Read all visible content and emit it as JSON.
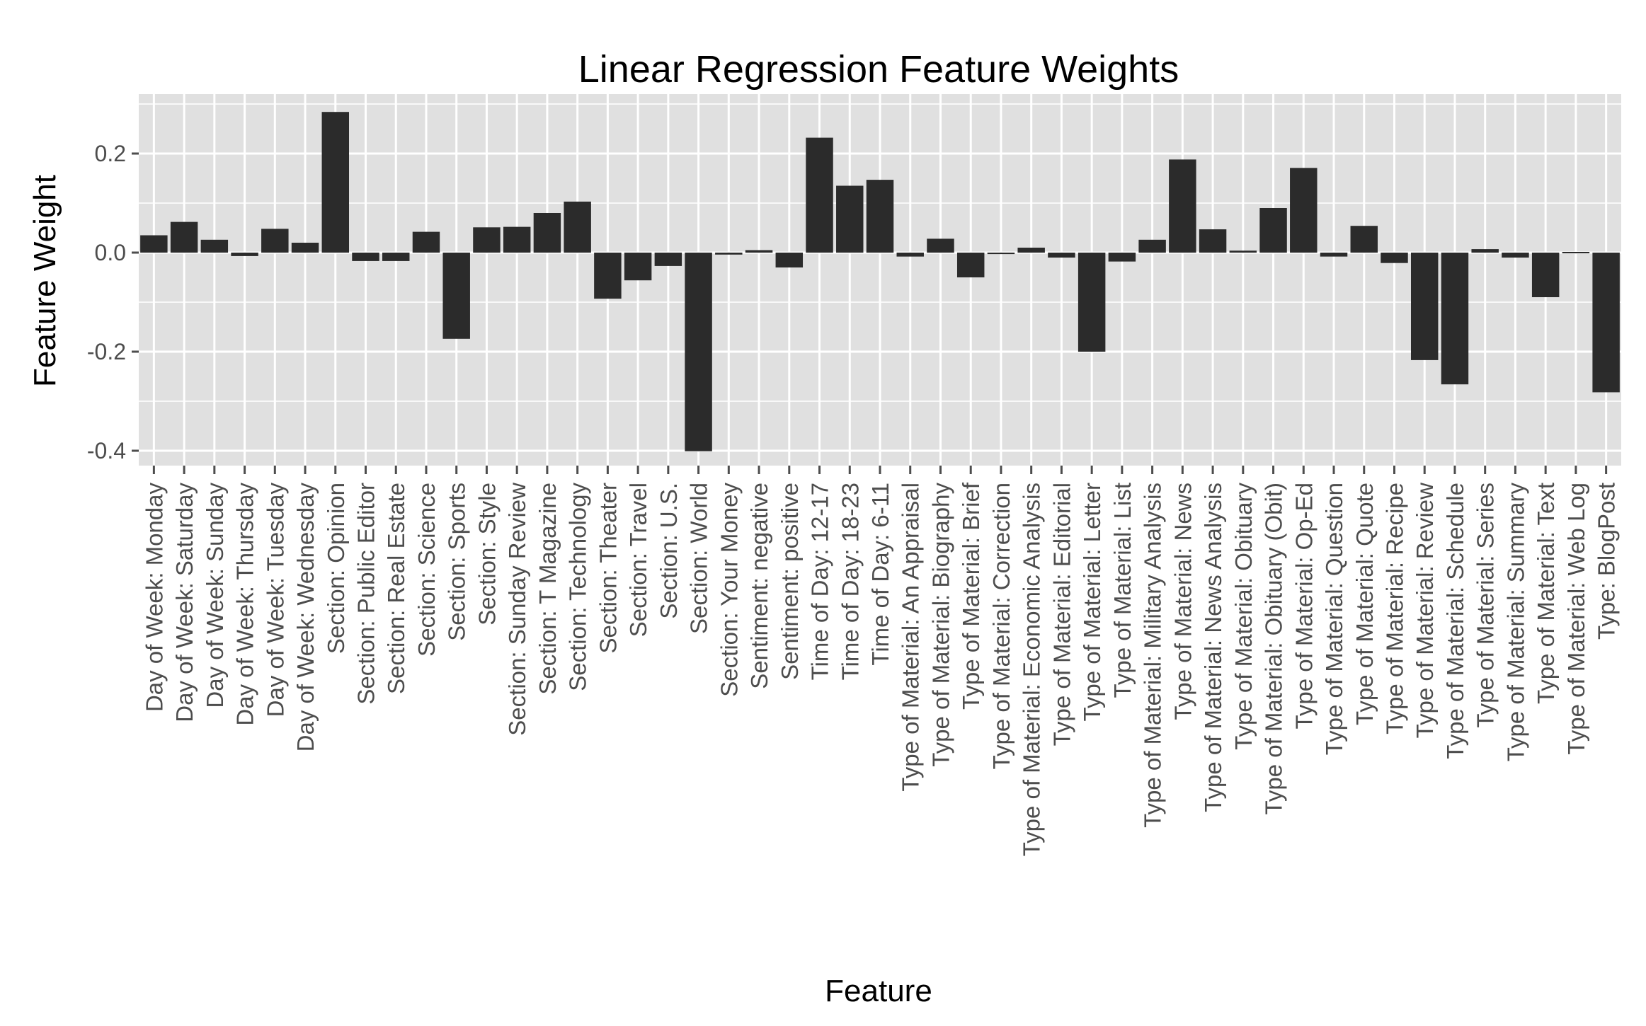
{
  "chart_data": {
    "type": "bar",
    "title": "Linear Regression Feature Weights",
    "xlabel": "Feature",
    "ylabel": "Feature Weight",
    "ylim": [
      -0.43,
      0.32
    ],
    "yticks": [
      -0.4,
      -0.2,
      0.0,
      0.2
    ],
    "ytick_labels": [
      "-0.4",
      "-0.2",
      "0.0",
      "0.2"
    ],
    "grid": true,
    "colors": {
      "panel": "#e0e0e0",
      "grid": "#ffffff",
      "bar": "#2b2b2b",
      "tick_text": "#4d4d4d"
    },
    "categories": [
      "Day of Week: Monday",
      "Day of Week: Saturday",
      "Day of Week: Sunday",
      "Day of Week: Thursday",
      "Day of Week: Tuesday",
      "Day of Week: Wednesday",
      "Section: Opinion",
      "Section: Public Editor",
      "Section: Real Estate",
      "Section: Science",
      "Section: Sports",
      "Section: Style",
      "Section: Sunday Review",
      "Section: T Magazine",
      "Section: Technology",
      "Section: Theater",
      "Section: Travel",
      "Section: U.S.",
      "Section: World",
      "Section: Your Money",
      "Sentiment: negative",
      "Sentiment: positive",
      "Time of Day: 12-17",
      "Time of Day: 18-23",
      "Time of Day: 6-11",
      "Type of Material: An Appraisal",
      "Type of Material: Biography",
      "Type of Material: Brief",
      "Type of Material: Correction",
      "Type of Material: Economic Analysis",
      "Type of Material: Editorial",
      "Type of Material: Letter",
      "Type of Material: List",
      "Type of Material: Military Analysis",
      "Type of Material: News",
      "Type of Material: News Analysis",
      "Type of Material: Obituary",
      "Type of Material: Obituary (Obit)",
      "Type of Material: Op-Ed",
      "Type of Material: Question",
      "Type of Material: Quote",
      "Type of Material: Recipe",
      "Type of Material: Review",
      "Type of Material: Schedule",
      "Type of Material: Series",
      "Type of Material: Summary",
      "Type of Material: Text",
      "Type of Material: Web Log",
      "Type: BlogPost"
    ],
    "values": [
      0.035,
      0.062,
      0.026,
      -0.007,
      0.048,
      0.02,
      0.284,
      -0.017,
      -0.017,
      0.042,
      -0.174,
      0.051,
      0.052,
      0.08,
      0.103,
      -0.093,
      -0.056,
      -0.027,
      -0.401,
      -0.004,
      0.005,
      -0.03,
      0.232,
      0.135,
      0.147,
      -0.008,
      0.028,
      -0.05,
      -0.003,
      0.01,
      -0.01,
      -0.2,
      -0.018,
      0.026,
      0.188,
      0.047,
      0.004,
      0.09,
      0.171,
      -0.008,
      0.054,
      -0.021,
      -0.217,
      -0.266,
      0.007,
      -0.01,
      -0.09,
      -0.001,
      -0.282
    ]
  }
}
